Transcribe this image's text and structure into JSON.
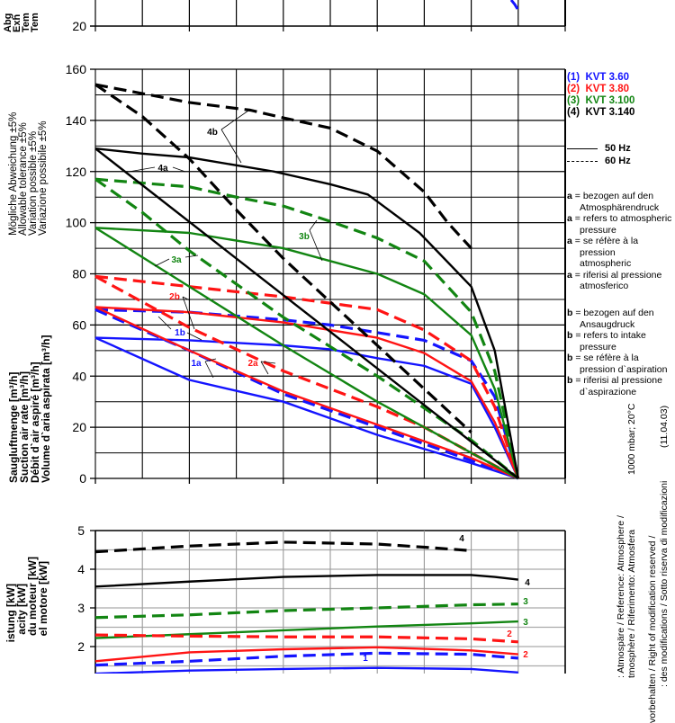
{
  "colors": {
    "1": "#1414ff",
    "2": "#ff1414",
    "3": "#128512",
    "4": "#000000"
  },
  "top_chart": {
    "y_tick": "20",
    "ylabel_lines": [
      "Abg",
      "Exh",
      "Tem",
      "Tem"
    ]
  },
  "legend": {
    "pumps": [
      {
        "num": "(1)",
        "name": "KVT 3.60"
      },
      {
        "num": "(2)",
        "name": "KVT 3.80"
      },
      {
        "num": "(3)",
        "name": "KVT 3.100"
      },
      {
        "num": "(4)",
        "name": "KVT 3.140"
      }
    ],
    "hz50": "50 Hz",
    "hz60": "60 Hz",
    "a_notes": [
      {
        "key": "a",
        "text": "= bezogen auf den",
        "cont": "Atmosphärendruck"
      },
      {
        "key": "a",
        "text": "= refers to atmospheric",
        "cont": "pressure"
      },
      {
        "key": "a",
        "text": "= se réfère à la",
        "cont": "pression",
        "cont2": "atmospheric"
      },
      {
        "key": "a",
        "text": "= riferisi al pressione",
        "cont": "atmosferico"
      }
    ],
    "b_notes": [
      {
        "key": "b",
        "text": "= bezogen auf den",
        "cont": "Ansaugdruck"
      },
      {
        "key": "b",
        "text": "= refers to intake",
        "cont": "pressure"
      },
      {
        "key": "b",
        "text": "= se réfère à la",
        "cont": "pression d`aspiration"
      },
      {
        "key": "b",
        "text": "= riferisi al pressione",
        "cont": "d`aspirazione"
      }
    ]
  },
  "side_notes": {
    "ref_line1": ": Atmospäre / Reference: Atmosphere /",
    "ref_line2": "tmosphère / Riferimento: Atmosfera",
    "ref_value": "1000 mbar; 20°C",
    "mod_line1": "vorbehalten / Right of modification reserved /",
    "mod_line2": ": des modifications / Sotto riserva di modificazioni",
    "date": "(11.04.03)"
  },
  "chart_data": [
    {
      "type": "line",
      "title": "",
      "ylabel_lines": [
        "Saugluftmenge [m³/h]",
        "Suction air rate [m³/h]",
        "Débit d`air aspiré [m³/h]",
        "Volume d`aria aspirata [m³/h]"
      ],
      "tolerance_lines": [
        "Mögliche Abweichung ±5%",
        "Allowable tolerance ±5%",
        "Variation possible ±5%",
        "Variazione possibile ±5%"
      ],
      "xlabel": "",
      "xlim": [
        0,
        10
      ],
      "ylim": [
        0,
        160
      ],
      "y_ticks": [
        "0",
        "20",
        "40",
        "60",
        "80",
        "100",
        "120",
        "140",
        "160"
      ],
      "grid": true,
      "legend": "right",
      "series": [
        {
          "label": "1a",
          "pump": "1",
          "freq": "50 Hz",
          "x": [
            0,
            2,
            4,
            6,
            8,
            9
          ],
          "y": [
            55,
            38.5,
            30,
            17,
            6,
            0
          ]
        },
        {
          "label": "1b",
          "pump": "1",
          "freq": "50 Hz",
          "x": [
            0,
            2,
            4,
            5,
            6,
            7,
            8,
            8.5,
            9
          ],
          "y": [
            55,
            54,
            52,
            50.5,
            47,
            44,
            37,
            20,
            0
          ]
        },
        {
          "label": "1a",
          "pump": "1",
          "freq": "60 Hz",
          "x": [
            0,
            2,
            4,
            6,
            8,
            9
          ],
          "y": [
            66,
            50,
            33,
            20,
            7,
            0
          ]
        },
        {
          "label": "1b",
          "pump": "1",
          "freq": "60 Hz",
          "x": [
            0,
            2,
            4,
            5,
            6,
            7,
            8,
            8.5,
            9
          ],
          "y": [
            66,
            65,
            62,
            60,
            57,
            54,
            46,
            32,
            0
          ]
        },
        {
          "label": "2a",
          "pump": "2",
          "freq": "50 Hz",
          "x": [
            0,
            2,
            4,
            6,
            8,
            9
          ],
          "y": [
            67,
            50,
            34,
            21,
            8,
            0
          ]
        },
        {
          "label": "2b",
          "pump": "2",
          "freq": "50 Hz",
          "x": [
            0,
            2,
            4,
            6,
            7,
            8,
            8.5,
            9
          ],
          "y": [
            67,
            65,
            61,
            55,
            49,
            38,
            22,
            0
          ]
        },
        {
          "label": "2a",
          "pump": "2",
          "freq": "60 Hz",
          "x": [
            0,
            2,
            4,
            6,
            7,
            8,
            9
          ],
          "y": [
            79,
            59,
            42,
            28,
            20,
            10,
            0
          ]
        },
        {
          "label": "2b",
          "pump": "2",
          "freq": "60 Hz",
          "x": [
            0,
            2,
            4,
            6,
            7,
            8,
            8.5,
            9
          ],
          "y": [
            79,
            75,
            71,
            66,
            58,
            46,
            28,
            0
          ]
        },
        {
          "label": "3a",
          "pump": "3",
          "freq": "50 Hz",
          "x": [
            0,
            2,
            4,
            6,
            8,
            9
          ],
          "y": [
            98,
            75,
            52,
            30,
            10,
            0
          ]
        },
        {
          "label": "3b",
          "pump": "3",
          "freq": "50 Hz",
          "x": [
            0,
            2,
            4,
            5,
            6,
            7,
            8,
            8.5,
            9
          ],
          "y": [
            98,
            96,
            90,
            85,
            80,
            72,
            56,
            35,
            0
          ]
        },
        {
          "label": "3a",
          "pump": "3",
          "freq": "60 Hz",
          "x": [
            0,
            1,
            2,
            4,
            6,
            8,
            9
          ],
          "y": [
            117,
            104,
            89,
            63,
            40,
            15,
            0
          ]
        },
        {
          "label": "3b",
          "pump": "3",
          "freq": "60 Hz",
          "x": [
            0,
            2,
            3,
            4,
            5,
            6,
            7,
            8,
            8.5,
            9
          ],
          "y": [
            117,
            114,
            110,
            106.5,
            100.5,
            94,
            85,
            65,
            42,
            0
          ]
        },
        {
          "label": "4a",
          "pump": "4",
          "freq": "50 Hz",
          "x": [
            0,
            9
          ],
          "y": [
            129,
            0
          ]
        },
        {
          "label": "4b",
          "pump": "4",
          "freq": "50 Hz",
          "x": [
            0,
            1,
            2,
            3.8,
            5,
            5.8,
            6.9,
            8,
            8.5,
            9
          ],
          "y": [
            129,
            127,
            125.5,
            120,
            115,
            111,
            96,
            75,
            50,
            0
          ]
        },
        {
          "label": "4a",
          "pump": "4",
          "freq": "60 Hz",
          "x": [
            0,
            1,
            2,
            3,
            4,
            6,
            8
          ],
          "y": [
            154,
            141.5,
            125,
            105,
            86,
            52,
            18
          ]
        },
        {
          "label": "4b",
          "pump": "4",
          "freq": "60 Hz",
          "x": [
            0,
            1,
            2,
            3.3,
            4,
            5,
            6,
            7,
            7.5,
            8
          ],
          "y": [
            154,
            150.5,
            147,
            144,
            141,
            137,
            128,
            112,
            100,
            90
          ]
        }
      ]
    },
    {
      "type": "line",
      "title": "",
      "ylabel_lines": [
        "istung [kW]",
        "acity [kW]",
        "du moteur [kW]",
        "el motore [kW]"
      ],
      "xlim": [
        0,
        10
      ],
      "ylim": [
        1,
        5
      ],
      "y_ticks": [
        "2",
        "3",
        "4",
        "5"
      ],
      "grid": true,
      "series": [
        {
          "label": "4",
          "pump": "4",
          "freq": "60 Hz",
          "x": [
            0,
            2,
            4,
            6,
            7,
            8
          ],
          "y": [
            4.45,
            4.6,
            4.7,
            4.65,
            4.57,
            4.48
          ]
        },
        {
          "label": "4",
          "pump": "4",
          "freq": "50 Hz",
          "x": [
            0,
            2,
            4,
            6,
            8,
            8.5,
            9
          ],
          "y": [
            3.55,
            3.68,
            3.8,
            3.85,
            3.85,
            3.8,
            3.73
          ]
        },
        {
          "label": "3",
          "pump": "3",
          "freq": "60 Hz",
          "x": [
            0,
            2,
            4,
            6,
            8,
            9
          ],
          "y": [
            2.75,
            2.82,
            2.93,
            3.0,
            3.08,
            3.1
          ]
        },
        {
          "label": "3",
          "pump": "3",
          "freq": "50 Hz",
          "x": [
            0,
            2,
            4,
            6,
            8,
            9
          ],
          "y": [
            2.22,
            2.32,
            2.42,
            2.52,
            2.6,
            2.65
          ]
        },
        {
          "label": "2",
          "pump": "2",
          "freq": "60 Hz",
          "x": [
            0,
            2,
            4,
            6,
            8,
            9
          ],
          "y": [
            2.3,
            2.27,
            2.25,
            2.25,
            2.2,
            2.12
          ]
        },
        {
          "label": "2",
          "pump": "2",
          "freq": "50 Hz",
          "x": [
            0,
            2,
            4,
            6,
            8,
            9
          ],
          "y": [
            1.62,
            1.85,
            1.93,
            1.98,
            1.9,
            1.8
          ]
        },
        {
          "label": "1",
          "pump": "1",
          "freq": "60 Hz",
          "x": [
            0,
            2,
            4,
            6,
            8,
            9
          ],
          "y": [
            1.52,
            1.62,
            1.75,
            1.83,
            1.8,
            1.7
          ]
        },
        {
          "label": "1",
          "pump": "1",
          "freq": "50 Hz",
          "x": [
            0,
            2,
            4,
            6,
            8,
            9
          ],
          "y": [
            1.3,
            1.38,
            1.42,
            1.45,
            1.42,
            1.33
          ]
        }
      ]
    }
  ]
}
